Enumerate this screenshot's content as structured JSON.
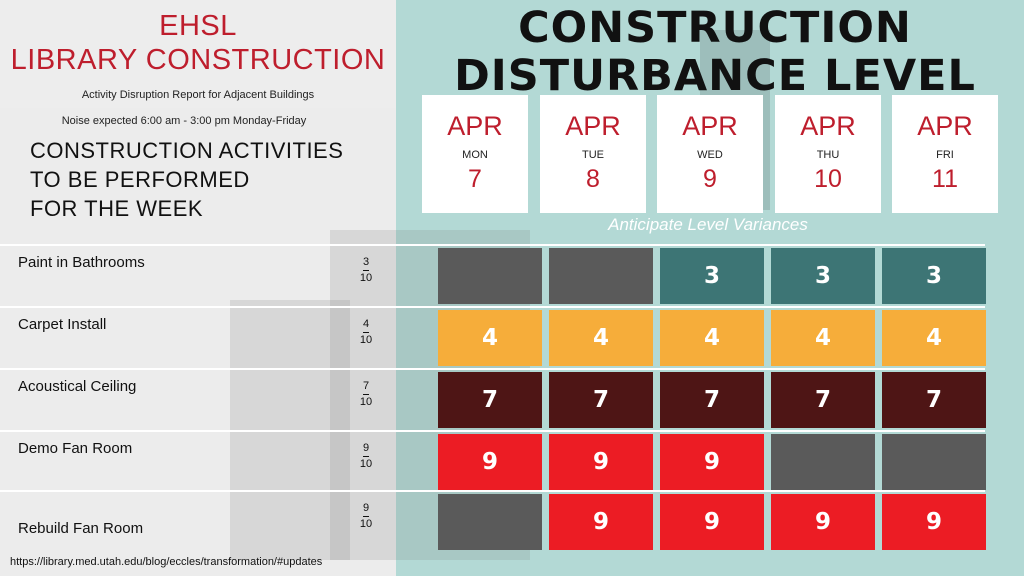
{
  "header": {
    "title_line1": "EHSL",
    "title_line2": "LIBRARY CONSTRUCTION",
    "subtitle": "Activity Disruption Report for Adjacent Buildings",
    "noise_note": "Noise expected 6:00 am - 3:00 pm Monday-Friday",
    "activities_heading_line1": "CONSTRUCTION ACTIVITIES",
    "activities_heading_line2": "TO BE PERFORMED",
    "activities_heading_line3": "FOR THE WEEK",
    "big_title_line1": "CONSTRUCTION",
    "big_title_line2": "DISTURBANCE LEVEL",
    "variance_note": "Anticipate Level Variances"
  },
  "days": [
    {
      "month": "APR",
      "weekday": "MON",
      "date": "7"
    },
    {
      "month": "APR",
      "weekday": "TUE",
      "date": "8"
    },
    {
      "month": "APR",
      "weekday": "WED",
      "date": "9"
    },
    {
      "month": "APR",
      "weekday": "THU",
      "date": "10"
    },
    {
      "month": "APR",
      "weekday": "FRI",
      "date": "11"
    }
  ],
  "activities": [
    {
      "name": "Paint in Bathrooms",
      "level": "3",
      "scale": "10",
      "cells": [
        "",
        "",
        "3",
        "3",
        "3"
      ],
      "color": "#3d7575"
    },
    {
      "name": "Carpet Install",
      "level": "4",
      "scale": "10",
      "cells": [
        "4",
        "4",
        "4",
        "4",
        "4"
      ],
      "color": "#f6ad3a"
    },
    {
      "name": "Acoustical Ceiling",
      "level": "7",
      "scale": "10",
      "cells": [
        "7",
        "7",
        "7",
        "7",
        "7"
      ],
      "color": "#4e1515"
    },
    {
      "name": "Demo Fan Room",
      "level": "9",
      "scale": "10",
      "cells": [
        "9",
        "9",
        "9",
        "",
        ""
      ],
      "color": "#ec1c24"
    },
    {
      "name": "Rebuild Fan Room",
      "level": "9",
      "scale": "10",
      "cells": [
        "",
        "9",
        "9",
        "9",
        "9"
      ],
      "color": "#ec1c24"
    }
  ],
  "colors": {
    "inactive": "#5a5a5a",
    "accent_red": "#be1e2d",
    "background_teal": "#b3d9d5"
  },
  "footer": {
    "url": "https://library.med.utah.edu/blog/eccles/transformation/#updates"
  }
}
